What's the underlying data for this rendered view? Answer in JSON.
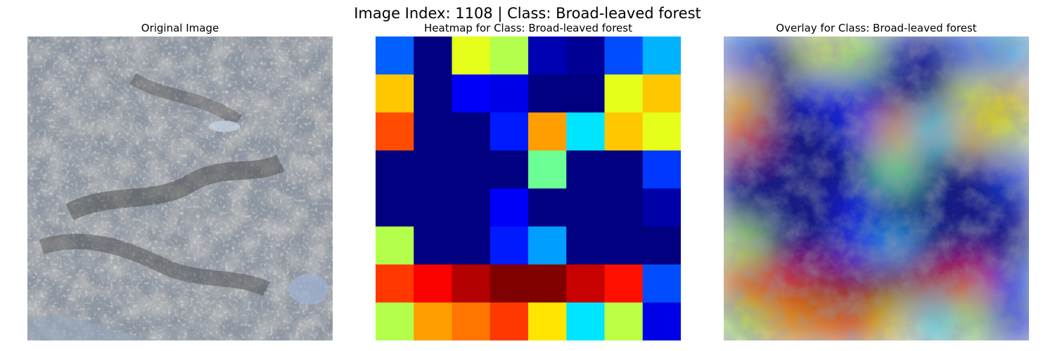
{
  "suptitle": "Image Index: 1108 | Class: Broad-leaved forest",
  "panels": [
    {
      "title": "Original Image"
    },
    {
      "title": "Heatmap for Class: Broad-leaved forest"
    },
    {
      "title": "Overlay for Class: Broad-leaved forest"
    }
  ],
  "heatmap": {
    "colormap": "jet",
    "rows": 8,
    "cols": 8,
    "values": [
      [
        0.22,
        0.0,
        0.6,
        0.55,
        0.05,
        0.02,
        0.2,
        0.3
      ],
      [
        0.68,
        0.0,
        0.12,
        0.1,
        0.0,
        0.0,
        0.6,
        0.68
      ],
      [
        0.8,
        0.0,
        0.0,
        0.15,
        0.72,
        0.35,
        0.68,
        0.6
      ],
      [
        0.0,
        0.0,
        0.0,
        0.0,
        0.48,
        0.0,
        0.0,
        0.18
      ],
      [
        0.0,
        0.0,
        0.0,
        0.12,
        0.0,
        0.0,
        0.0,
        0.04
      ],
      [
        0.55,
        0.0,
        0.0,
        0.15,
        0.28,
        0.0,
        0.0,
        0.0
      ],
      [
        0.82,
        0.88,
        0.95,
        1.0,
        1.0,
        0.93,
        0.86,
        0.2
      ],
      [
        0.55,
        0.72,
        0.76,
        0.82,
        0.65,
        0.35,
        0.56,
        0.1
      ]
    ]
  }
}
